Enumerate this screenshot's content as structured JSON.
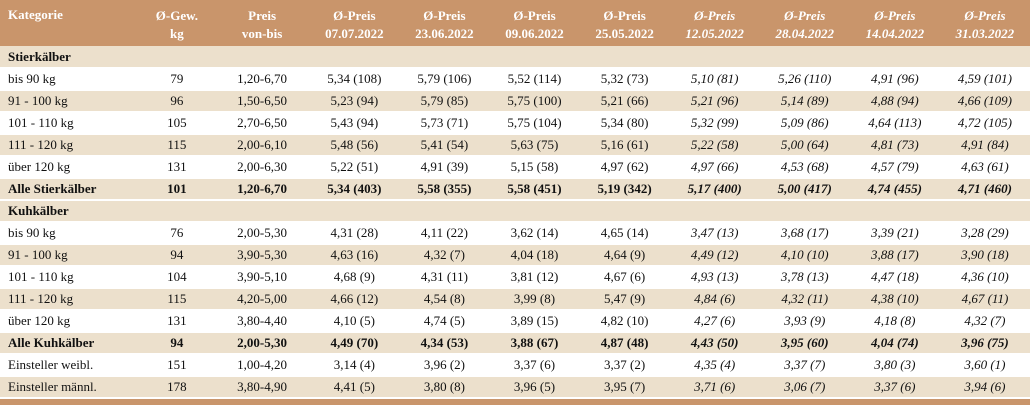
{
  "header": {
    "kategorie": "Kategorie",
    "gew_l1": "Ø-Gew.",
    "gew_l2": "kg",
    "preis_l1": "Preis",
    "preis_l2": "von-bis",
    "dates": [
      {
        "l1": "Ø-Preis",
        "l2": "07.07.2022"
      },
      {
        "l1": "Ø-Preis",
        "l2": "23.06.2022"
      },
      {
        "l1": "Ø-Preis",
        "l2": "09.06.2022"
      },
      {
        "l1": "Ø-Preis",
        "l2": "25.05.2022"
      },
      {
        "l1": "Ø-Preis",
        "l2": "12.05.2022"
      },
      {
        "l1": "Ø-Preis",
        "l2": "28.04.2022"
      },
      {
        "l1": "Ø-Preis",
        "l2": "14.04.2022"
      },
      {
        "l1": "Ø-Preis",
        "l2": "31.03.2022"
      }
    ]
  },
  "sections": [
    {
      "title": "Stierkälber",
      "rows": [
        {
          "label": "bis 90 kg",
          "gew": "79",
          "preis": "1,20-6,70",
          "v": [
            "5,34 (108)",
            "5,79 (106)",
            "5,52 (114)",
            "5,32 (73)",
            "5,10 (81)",
            "5,26 (110)",
            "4,91 (96)",
            "4,59 (101)"
          ]
        },
        {
          "label": "91 - 100 kg",
          "gew": "96",
          "preis": "1,50-6,50",
          "v": [
            "5,23 (94)",
            "5,79 (85)",
            "5,75 (100)",
            "5,21 (66)",
            "5,21 (96)",
            "5,14 (89)",
            "4,88 (94)",
            "4,66 (109)"
          ]
        },
        {
          "label": "101 - 110 kg",
          "gew": "105",
          "preis": "2,70-6,50",
          "v": [
            "5,43 (94)",
            "5,73 (71)",
            "5,75 (104)",
            "5,34 (80)",
            "5,32 (99)",
            "5,09 (86)",
            "4,64 (113)",
            "4,72 (105)"
          ]
        },
        {
          "label": "111 - 120 kg",
          "gew": "115",
          "preis": "2,00-6,10",
          "v": [
            "5,48 (56)",
            "5,41 (54)",
            "5,63 (75)",
            "5,16 (61)",
            "5,22 (58)",
            "5,00 (64)",
            "4,81 (73)",
            "4,91 (84)"
          ]
        },
        {
          "label": "über 120 kg",
          "gew": "131",
          "preis": "2,00-6,30",
          "v": [
            "5,22 (51)",
            "4,91 (39)",
            "5,15 (58)",
            "4,97 (62)",
            "4,97 (66)",
            "4,53 (68)",
            "4,57 (79)",
            "4,63 (61)"
          ]
        }
      ],
      "total": {
        "label": "Alle Stierkälber",
        "gew": "101",
        "preis": "1,20-6,70",
        "v": [
          "5,34 (403)",
          "5,58 (355)",
          "5,58 (451)",
          "5,19 (342)",
          "5,17 (400)",
          "5,00 (417)",
          "4,74 (455)",
          "4,71 (460)"
        ]
      }
    },
    {
      "title": "Kuhkälber",
      "rows": [
        {
          "label": "bis 90 kg",
          "gew": "76",
          "preis": "2,00-5,30",
          "v": [
            "4,31 (28)",
            "4,11 (22)",
            "3,62 (14)",
            "4,65 (14)",
            "3,47 (13)",
            "3,68 (17)",
            "3,39 (21)",
            "3,28 (29)"
          ]
        },
        {
          "label": "91 - 100 kg",
          "gew": "94",
          "preis": "3,90-5,30",
          "v": [
            "4,63 (16)",
            "4,32 (7)",
            "4,04 (18)",
            "4,64 (9)",
            "4,49 (12)",
            "4,10 (10)",
            "3,88 (17)",
            "3,90 (18)"
          ]
        },
        {
          "label": "101 - 110 kg",
          "gew": "104",
          "preis": "3,90-5,10",
          "v": [
            "4,68 (9)",
            "4,31 (11)",
            "3,81 (12)",
            "4,67 (6)",
            "4,93 (13)",
            "3,78 (13)",
            "4,47 (18)",
            "4,36 (10)"
          ]
        },
        {
          "label": "111 - 120 kg",
          "gew": "115",
          "preis": "4,20-5,00",
          "v": [
            "4,66 (12)",
            "4,54 (8)",
            "3,99 (8)",
            "5,47 (9)",
            "4,84 (6)",
            "4,32 (11)",
            "4,38 (10)",
            "4,67 (11)"
          ]
        },
        {
          "label": "über 120 kg",
          "gew": "131",
          "preis": "3,80-4,40",
          "v": [
            "4,10 (5)",
            "4,74 (5)",
            "3,89 (15)",
            "4,82 (10)",
            "4,27 (6)",
            "3,93 (9)",
            "4,18 (8)",
            "4,32 (7)"
          ]
        }
      ],
      "total": {
        "label": "Alle Kuhkälber",
        "gew": "94",
        "preis": "2,00-5,30",
        "v": [
          "4,49 (70)",
          "4,34 (53)",
          "3,88 (67)",
          "4,87 (48)",
          "4,43 (50)",
          "3,95 (60)",
          "4,04 (74)",
          "3,96 (75)"
        ]
      }
    }
  ],
  "extra": [
    {
      "label": "Einsteller weibl.",
      "gew": "151",
      "preis": "1,00-4,20",
      "v": [
        "3,14 (4)",
        "3,96 (2)",
        "3,37 (6)",
        "3,37 (2)",
        "4,35 (4)",
        "3,37 (7)",
        "3,80 (3)",
        "3,60 (1)"
      ]
    },
    {
      "label": "Einsteller männl.",
      "gew": "178",
      "preis": "3,80-4,90",
      "v": [
        "4,41 (5)",
        "3,80 (8)",
        "3,96 (5)",
        "3,95 (7)",
        "3,71 (6)",
        "3,06 (7)",
        "3,37 (6)",
        "3,94 (6)"
      ]
    }
  ],
  "colors": {
    "header": "#c9956b",
    "band": "#ece0cc"
  }
}
